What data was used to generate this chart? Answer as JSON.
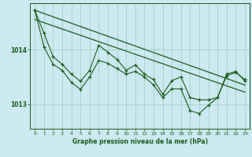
{
  "title": "Graphe pression niveau de la mer (hPa)",
  "bg_color": "#cce8f0",
  "line_color": "#1a5c1a",
  "grid_color": "#99ccbb",
  "xlim": [
    -0.5,
    23.5
  ],
  "ylim": [
    1012.55,
    1014.85
  ],
  "yticks": [
    1013,
    1014
  ],
  "xticks": [
    0,
    1,
    2,
    3,
    4,
    5,
    6,
    7,
    8,
    9,
    10,
    11,
    12,
    13,
    14,
    15,
    16,
    17,
    18,
    19,
    20,
    21,
    22,
    23
  ],
  "trend1_x": [
    0,
    23
  ],
  "trend1_y": [
    1014.72,
    1013.35
  ],
  "trend2_x": [
    0,
    23
  ],
  "trend2_y": [
    1014.55,
    1013.22
  ],
  "series1_x": [
    0,
    1,
    2,
    3,
    4,
    5,
    6,
    7,
    8,
    9,
    10,
    11,
    12,
    13,
    14,
    15,
    16,
    17,
    18,
    19,
    20,
    21,
    22,
    23
  ],
  "series1_y": [
    1014.72,
    1014.3,
    1013.87,
    1013.73,
    1013.55,
    1013.42,
    1013.62,
    1014.08,
    1013.95,
    1013.82,
    1013.62,
    1013.72,
    1013.55,
    1013.45,
    1013.18,
    1013.43,
    1013.5,
    1013.12,
    1013.08,
    1013.08,
    1013.12,
    1013.52,
    1013.58,
    1013.45
  ],
  "series2_x": [
    0,
    1,
    2,
    3,
    4,
    5,
    6,
    7,
    8,
    9,
    10,
    11,
    12,
    13,
    14,
    15,
    16,
    17,
    18,
    19,
    20,
    21,
    22,
    23
  ],
  "series2_y": [
    1014.72,
    1014.05,
    1013.73,
    1013.62,
    1013.4,
    1013.27,
    1013.5,
    1013.8,
    1013.75,
    1013.65,
    1013.55,
    1013.6,
    1013.5,
    1013.35,
    1013.12,
    1013.28,
    1013.28,
    1012.88,
    1012.83,
    1012.98,
    1013.12,
    1013.55,
    1013.6,
    1013.42
  ]
}
